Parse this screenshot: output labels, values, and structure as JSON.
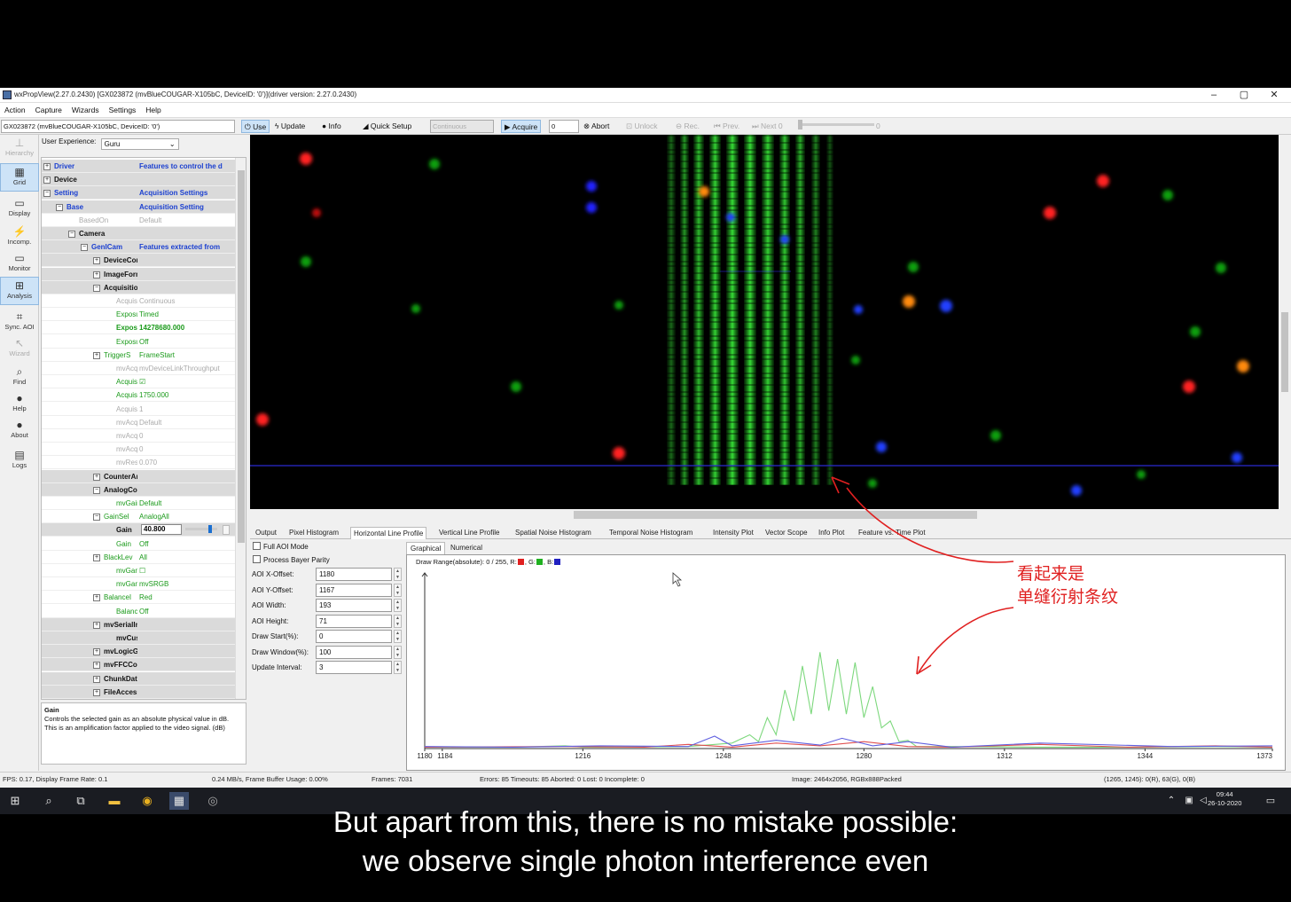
{
  "window": {
    "title": "wxPropView(2.27.0.2430) [GX023872 (mvBlueCOUGAR-X105bC, DeviceID: '0')](driver version: 2.27.0.2430)",
    "min": "–",
    "max": "▢",
    "close": "✕"
  },
  "menu": [
    "Action",
    "Capture",
    "Wizards",
    "Settings",
    "Help"
  ],
  "toolbar": {
    "device": "GX023872 (mvBlueCOUGAR-X105bC, DeviceID: '0')",
    "use": "Use",
    "update": "Update",
    "info": "Info",
    "quick_setup": "Quick Setup",
    "mode": "Continuous",
    "acquire": "Acquire",
    "acquire_count": "0",
    "abort": "Abort",
    "unlock": "Unlock",
    "rec": "Rec.",
    "prev": "Prev.",
    "next": "Next",
    "next_val": "0",
    "slider_val": "0"
  },
  "leftbar": [
    {
      "label": "Hierarchy",
      "icon": "hierarchy-icon",
      "glyph": "⊥",
      "state": "dis"
    },
    {
      "label": "Grid",
      "icon": "grid-icon",
      "glyph": "▦",
      "state": "sel"
    },
    {
      "label": "Display",
      "icon": "display-icon",
      "glyph": "▭",
      "state": ""
    },
    {
      "label": "Incomp.",
      "icon": "incomplete-icon",
      "glyph": "⚡",
      "state": ""
    },
    {
      "label": "Monitor",
      "icon": "monitor-icon",
      "glyph": "▭",
      "state": ""
    },
    {
      "label": "Analysis",
      "icon": "analysis-icon",
      "glyph": "⊞",
      "state": "sel"
    },
    {
      "label": "Sync. AOI",
      "icon": "sync-aoi-icon",
      "glyph": "⌗",
      "state": ""
    },
    {
      "label": "Wizard",
      "icon": "wizard-icon",
      "glyph": "↖",
      "state": "dis"
    },
    {
      "label": "Find",
      "icon": "find-icon",
      "glyph": "⌕",
      "state": ""
    },
    {
      "label": "Help",
      "icon": "help-icon",
      "glyph": "●",
      "state": ""
    },
    {
      "label": "About",
      "icon": "about-icon",
      "glyph": "●",
      "state": ""
    },
    {
      "label": "Logs",
      "icon": "logs-icon",
      "glyph": "▤",
      "state": ""
    }
  ],
  "user_experience": {
    "label": "User Experience:",
    "value": "Guru"
  },
  "tree": [
    {
      "lvl": 0,
      "pm": "⊞",
      "name": "Driver",
      "nc": "b blue",
      "val": "Features to control the d",
      "vc": "blue",
      "shade": true
    },
    {
      "lvl": 0,
      "pm": "⊞",
      "name": "Device",
      "nc": "b",
      "val": "",
      "vc": "",
      "shade": true
    },
    {
      "lvl": 0,
      "pm": "⊟",
      "name": "Setting",
      "nc": "b blue",
      "val": "Acquisition Settings",
      "vc": "blue",
      "shade": true
    },
    {
      "lvl": 1,
      "pm": "⊟",
      "name": "Base",
      "nc": "b blue",
      "val": "Acquisition Setting",
      "vc": "blue",
      "shade": true
    },
    {
      "lvl": 2,
      "pm": "",
      "name": "BasedOn",
      "nc": "gry",
      "val": "Default",
      "vc": "",
      "shade": false
    },
    {
      "lvl": 2,
      "pm": "⊟",
      "name": "Camera",
      "nc": "b",
      "val": "",
      "vc": "",
      "shade": true
    },
    {
      "lvl": 3,
      "pm": "⊟",
      "name": "GenICam",
      "nc": "b blue",
      "val": "Features extracted from",
      "vc": "blue",
      "shade": true
    },
    {
      "lvl": 4,
      "pm": "⊞",
      "name": "DeviceControl",
      "nc": "b",
      "val": "",
      "vc": "",
      "shade": true
    },
    {
      "lvl": 4,
      "pm": "⊞",
      "name": "ImageFormatControl",
      "nc": "b",
      "val": "",
      "vc": "",
      "shade": true
    },
    {
      "lvl": 4,
      "pm": "⊟",
      "name": "AcquisitionControl",
      "nc": "b",
      "val": "",
      "vc": "",
      "shade": true
    },
    {
      "lvl": 5,
      "pm": "",
      "name": "Acquisit",
      "nc": "gry",
      "val": "Continuous",
      "vc": "",
      "shade": false
    },
    {
      "lvl": 5,
      "pm": "",
      "name": "Exposure",
      "nc": "grn",
      "val": "Timed",
      "vc": "grn",
      "shade": false
    },
    {
      "lvl": 5,
      "pm": "",
      "name": "Exposur",
      "nc": "grn b",
      "val": "14278680.000",
      "vc": "grn b",
      "shade": false
    },
    {
      "lvl": 5,
      "pm": "",
      "name": "Exposure",
      "nc": "grn",
      "val": "Off",
      "vc": "grn",
      "shade": false
    },
    {
      "lvl": 4,
      "pm": "⊞",
      "name": "TriggerS",
      "nc": "grn",
      "val": "FrameStart",
      "vc": "grn",
      "shade": false
    },
    {
      "lvl": 5,
      "pm": "",
      "name": "mvAcqu",
      "nc": "gry",
      "val": "mvDeviceLinkThroughput",
      "vc": "",
      "shade": false
    },
    {
      "lvl": 5,
      "pm": "",
      "name": "Acquisit",
      "nc": "grn",
      "val": "☑",
      "vc": "grn",
      "shade": false
    },
    {
      "lvl": 5,
      "pm": "",
      "name": "Acquisit",
      "nc": "grn",
      "val": "1750.000",
      "vc": "grn",
      "shade": false
    },
    {
      "lvl": 5,
      "pm": "",
      "name": "Acquisit",
      "nc": "gry",
      "val": "1",
      "vc": "",
      "shade": false
    },
    {
      "lvl": 5,
      "pm": "",
      "name": "mvAcqu",
      "nc": "gry",
      "val": "Default",
      "vc": "",
      "shade": false
    },
    {
      "lvl": 5,
      "pm": "",
      "name": "mvAcqu",
      "nc": "gry",
      "val": "0",
      "vc": "",
      "shade": false
    },
    {
      "lvl": 5,
      "pm": "",
      "name": "mvAcqu",
      "nc": "gry",
      "val": "0",
      "vc": "",
      "shade": false
    },
    {
      "lvl": 5,
      "pm": "",
      "name": "mvResu",
      "nc": "gry",
      "val": "0.070",
      "vc": "",
      "shade": false
    },
    {
      "lvl": 4,
      "pm": "⊞",
      "name": "CounterAndTimerControl",
      "nc": "b",
      "val": "",
      "vc": "",
      "shade": true
    },
    {
      "lvl": 4,
      "pm": "⊟",
      "name": "AnalogControl",
      "nc": "b",
      "val": "",
      "vc": "",
      "shade": true
    },
    {
      "lvl": 5,
      "pm": "",
      "name": "mvGainI",
      "nc": "grn",
      "val": "Default",
      "vc": "grn",
      "shade": false
    },
    {
      "lvl": 4,
      "pm": "⊟",
      "name": "GainSel",
      "nc": "grn",
      "val": "AnalogAll",
      "vc": "grn",
      "shade": false
    },
    {
      "lvl": 5,
      "pm": "",
      "name": "Gain",
      "nc": "b",
      "val": "40.800",
      "vc": "edit",
      "shade": true
    },
    {
      "lvl": 5,
      "pm": "",
      "name": "Gain",
      "nc": "grn",
      "val": "Off",
      "vc": "grn",
      "shade": false
    },
    {
      "lvl": 4,
      "pm": "⊞",
      "name": "BlackLev",
      "nc": "grn",
      "val": "All",
      "vc": "grn",
      "shade": false
    },
    {
      "lvl": 5,
      "pm": "",
      "name": "mvGam",
      "nc": "grn",
      "val": "☐",
      "vc": "grn",
      "shade": false
    },
    {
      "lvl": 5,
      "pm": "",
      "name": "mvGam",
      "nc": "grn",
      "val": "mvSRGB",
      "vc": "grn",
      "shade": false
    },
    {
      "lvl": 4,
      "pm": "⊞",
      "name": "BalanceI",
      "nc": "grn",
      "val": "Red",
      "vc": "grn",
      "shade": false
    },
    {
      "lvl": 5,
      "pm": "",
      "name": "BalanceI",
      "nc": "grn",
      "val": "Off",
      "vc": "grn",
      "shade": false
    },
    {
      "lvl": 4,
      "pm": "⊞",
      "name": "mvSerialInterfaceControl",
      "nc": "b",
      "val": "",
      "vc": "",
      "shade": true
    },
    {
      "lvl": 5,
      "pm": "",
      "name": "mvCustomData",
      "nc": "b",
      "val": "",
      "vc": "",
      "shade": true
    },
    {
      "lvl": 4,
      "pm": "⊞",
      "name": "mvLogicGateControl",
      "nc": "b",
      "val": "",
      "vc": "",
      "shade": true
    },
    {
      "lvl": 4,
      "pm": "⊞",
      "name": "mvFFCControl",
      "nc": "b",
      "val": "",
      "vc": "",
      "shade": true
    },
    {
      "lvl": 4,
      "pm": "⊞",
      "name": "ChunkDataControl",
      "nc": "b",
      "val": "",
      "vc": "",
      "shade": true
    },
    {
      "lvl": 4,
      "pm": "⊞",
      "name": "FileAccessControl",
      "nc": "b",
      "val": "",
      "vc": "",
      "shade": true
    }
  ],
  "description": {
    "title": "Gain",
    "text": "Controls the selected gain as an absolute physical value in dB. This is an amplification factor applied to the video signal. (dB)"
  },
  "image_view": {
    "spots": [
      {
        "x": 63,
        "y": 27,
        "c": "#ff2020",
        "r": 7
      },
      {
        "x": 208,
        "y": 33,
        "c": "#10a010",
        "r": 6
      },
      {
        "x": 385,
        "y": 58,
        "c": "#2020ff",
        "r": 6
      },
      {
        "x": 385,
        "y": 82,
        "c": "#2020ff",
        "r": 6
      },
      {
        "x": 512,
        "y": 64,
        "c": "#ff8a10",
        "r": 6
      },
      {
        "x": 75,
        "y": 88,
        "c": "#c01010",
        "r": 5
      },
      {
        "x": 542,
        "y": 93,
        "c": "#2040ff",
        "r": 5
      },
      {
        "x": 603,
        "y": 118,
        "c": "#2040ff",
        "r": 5
      },
      {
        "x": 63,
        "y": 143,
        "c": "#10a010",
        "r": 6
      },
      {
        "x": 962,
        "y": 52,
        "c": "#ff2020",
        "r": 7
      },
      {
        "x": 1035,
        "y": 68,
        "c": "#10a010",
        "r": 6
      },
      {
        "x": 902,
        "y": 88,
        "c": "#ff2020",
        "r": 7
      },
      {
        "x": 748,
        "y": 149,
        "c": "#10a010",
        "r": 6
      },
      {
        "x": 743,
        "y": 188,
        "c": "#ff8a10",
        "r": 7
      },
      {
        "x": 785,
        "y": 193,
        "c": "#2040ff",
        "r": 7
      },
      {
        "x": 686,
        "y": 197,
        "c": "#2040ff",
        "r": 5
      },
      {
        "x": 1095,
        "y": 150,
        "c": "#10a010",
        "r": 6
      },
      {
        "x": 1066,
        "y": 222,
        "c": "#10a010",
        "r": 6
      },
      {
        "x": 1120,
        "y": 261,
        "c": "#ff8a10",
        "r": 7
      },
      {
        "x": 1059,
        "y": 284,
        "c": "#ff2020",
        "r": 7
      },
      {
        "x": 300,
        "y": 284,
        "c": "#10a010",
        "r": 6
      },
      {
        "x": 187,
        "y": 196,
        "c": "#10a010",
        "r": 5
      },
      {
        "x": 416,
        "y": 192,
        "c": "#10a010",
        "r": 5
      },
      {
        "x": 14,
        "y": 321,
        "c": "#ff2020",
        "r": 7
      },
      {
        "x": 416,
        "y": 359,
        "c": "#ff2020",
        "r": 7
      },
      {
        "x": 712,
        "y": 352,
        "c": "#2040ff",
        "r": 6
      },
      {
        "x": 841,
        "y": 339,
        "c": "#10a010",
        "r": 6
      },
      {
        "x": 1113,
        "y": 364,
        "c": "#2040ff",
        "r": 6
      },
      {
        "x": 1005,
        "y": 383,
        "c": "#10a010",
        "r": 5
      },
      {
        "x": 932,
        "y": 401,
        "c": "#2040ff",
        "r": 6
      },
      {
        "x": 702,
        "y": 393,
        "c": "#10a010",
        "r": 5
      },
      {
        "x": 683,
        "y": 254,
        "c": "#10a010",
        "r": 5
      }
    ],
    "fringes": [
      {
        "x": 470,
        "w": 10,
        "o": 0.45
      },
      {
        "x": 485,
        "w": 10,
        "o": 0.65
      },
      {
        "x": 500,
        "w": 12,
        "o": 0.8
      },
      {
        "x": 518,
        "w": 13,
        "o": 0.9
      },
      {
        "x": 537,
        "w": 14,
        "o": 0.95
      },
      {
        "x": 557,
        "w": 14,
        "o": 0.95
      },
      {
        "x": 577,
        "w": 14,
        "o": 0.9
      },
      {
        "x": 597,
        "w": 12,
        "o": 0.85
      },
      {
        "x": 615,
        "w": 11,
        "o": 0.75
      },
      {
        "x": 633,
        "w": 10,
        "o": 0.55
      },
      {
        "x": 650,
        "w": 8,
        "o": 0.35
      }
    ]
  },
  "tabs": [
    "Output",
    "Pixel Histogram",
    "Horizontal Line Profile",
    "Vertical Line Profile",
    "Spatial Noise Histogram",
    "Temporal Noise Histogram",
    "Intensity Plot",
    "Vector Scope",
    "Info Plot",
    "Feature vs. Time Plot"
  ],
  "controls": {
    "full_aoi": "Full AOI Mode",
    "bayer": "Process Bayer Parity",
    "fields": [
      {
        "label": "AOI X-Offset:",
        "value": "1180"
      },
      {
        "label": "AOI Y-Offset:",
        "value": "1167"
      },
      {
        "label": "AOI Width:",
        "value": "193"
      },
      {
        "label": "AOI Height:",
        "value": "71"
      },
      {
        "label": "Draw Start(%):",
        "value": "0"
      },
      {
        "label": "Draw Window(%):",
        "value": "100"
      },
      {
        "label": "Update Interval:",
        "value": "3"
      }
    ]
  },
  "subtabs": [
    "Graphical",
    "Numerical"
  ],
  "plot": {
    "draw_range": "Draw Range(absolute): 0 / 255, R:",
    "g_label": ", G:",
    "b_label": ", B:",
    "colors": {
      "r": "#e02020",
      "g": "#20b020",
      "b": "#2020c0"
    }
  },
  "chart_data": {
    "type": "line",
    "title": "",
    "xlabel": "",
    "ylabel": "",
    "xlim": [
      1180,
      1373
    ],
    "ylim": [
      0,
      255
    ],
    "x_ticks": [
      "1180",
      "1184",
      "1216",
      "1248",
      "1280",
      "1312",
      "1344",
      "1373"
    ],
    "x_tick_values": [
      1180,
      1184,
      1216,
      1248,
      1280,
      1312,
      1344,
      1373
    ],
    "series": [
      {
        "color": "#7dd87d",
        "x": [
          1180,
          1200,
          1212,
          1216,
          1220,
          1240,
          1250,
          1254,
          1256,
          1258,
          1260,
          1262,
          1264,
          1266,
          1268,
          1270,
          1272,
          1274,
          1276,
          1278,
          1280,
          1282,
          1284,
          1286,
          1288,
          1290,
          1292,
          1300,
          1320,
          1340,
          1360,
          1373
        ],
        "y": [
          2,
          2,
          4,
          2,
          2,
          3,
          8,
          20,
          10,
          45,
          20,
          85,
          40,
          120,
          50,
          140,
          55,
          130,
          50,
          125,
          45,
          90,
          30,
          40,
          10,
          12,
          3,
          3,
          2,
          2,
          3,
          2
        ]
      },
      {
        "color": "#e05050",
        "x": [
          1180,
          1210,
          1230,
          1240,
          1250,
          1260,
          1270,
          1280,
          1290,
          1300,
          1320,
          1340,
          1360,
          1373
        ],
        "y": [
          2,
          3,
          2,
          6,
          2,
          8,
          4,
          10,
          3,
          2,
          6,
          2,
          4,
          2
        ]
      },
      {
        "color": "#6060e0",
        "x": [
          1180,
          1200,
          1220,
          1240,
          1246,
          1250,
          1260,
          1270,
          1275,
          1282,
          1290,
          1300,
          1320,
          1350,
          1373
        ],
        "y": [
          3,
          2,
          4,
          3,
          18,
          4,
          12,
          5,
          15,
          4,
          10,
          2,
          8,
          3,
          4
        ]
      }
    ]
  },
  "statusbar": {
    "fps": "FPS: 0.17, Display Frame Rate: 0.1",
    "buffer": "0.24 MB/s, Frame Buffer Usage: 0.00%",
    "frames": "Frames: 7031",
    "errors": "Errors: 85 Timeouts: 85 Aborted: 0 Lost: 0 Incomplete: 0",
    "image": "Image: 2464x2056, RGBx888Packed",
    "pixel": "(1265, 1245): 0(R), 63(G), 0(B)"
  },
  "taskbar": {
    "time": "09:44",
    "date": "26-10-2020"
  },
  "annotation": {
    "line1": "看起来是",
    "line2": "单缝衍射条纹"
  },
  "subtitle": {
    "line1": "But apart from this, there is no mistake possible:",
    "line2": "we observe single photon interference even"
  }
}
